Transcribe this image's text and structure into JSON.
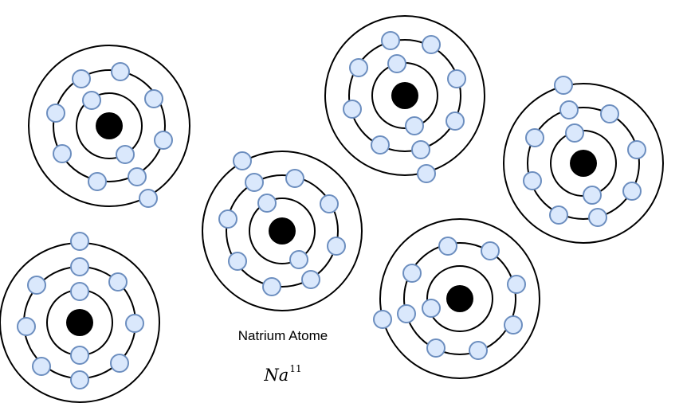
{
  "diagram": {
    "caption": "Natrium Atome",
    "formula": {
      "symbol": "Na",
      "superscript": "11"
    },
    "colors": {
      "line": "#000000",
      "nucleus": "#000000",
      "electron_fill": "#dae8fc",
      "electron_stroke": "#6c8ebf",
      "background": "#ffffff"
    },
    "atom_count": 6,
    "shells_per_atom": 3,
    "electrons_per_atom": 11
  }
}
